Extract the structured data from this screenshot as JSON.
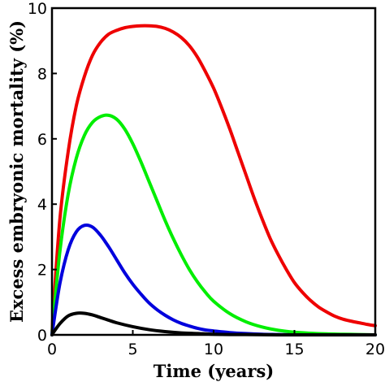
{
  "chart_data": {
    "type": "line",
    "title": "",
    "xlabel": "Time (years)",
    "ylabel": "Excess embryonic mortality (%)",
    "xlim": [
      0,
      20
    ],
    "ylim": [
      0,
      10
    ],
    "x_ticks": [
      0,
      5,
      10,
      15,
      20
    ],
    "y_ticks": [
      0,
      2,
      4,
      6,
      8,
      10
    ],
    "grid": false,
    "legend": "none",
    "series": [
      {
        "color": "#ee0000",
        "x": [
          0,
          0.1,
          0.5,
          1,
          1.5,
          2,
          2.5,
          3,
          3.5,
          4,
          4.5,
          5,
          5.5,
          6,
          6.5,
          7,
          7.5,
          8,
          8.5,
          9,
          9.5,
          10,
          10.5,
          11,
          11.5,
          12,
          12.5,
          13,
          13.5,
          14,
          14.5,
          15,
          15.5,
          16,
          16.5,
          17,
          17.5,
          18,
          18.5,
          19,
          19.5,
          20
        ],
        "values": [
          0,
          0.9,
          3.6,
          5.6,
          7.0,
          7.9,
          8.55,
          8.95,
          9.2,
          9.32,
          9.4,
          9.44,
          9.46,
          9.46,
          9.44,
          9.38,
          9.27,
          9.1,
          8.85,
          8.5,
          8.05,
          7.55,
          6.95,
          6.3,
          5.6,
          4.9,
          4.2,
          3.55,
          2.95,
          2.45,
          2.0,
          1.6,
          1.3,
          1.05,
          0.85,
          0.7,
          0.57,
          0.48,
          0.42,
          0.37,
          0.32,
          0.28
        ]
      },
      {
        "color": "#00ee00",
        "x": [
          0,
          0.1,
          0.5,
          1,
          1.5,
          2,
          2.5,
          3,
          3.5,
          4,
          4.5,
          5,
          5.5,
          6,
          6.5,
          7,
          7.5,
          8,
          8.5,
          9,
          9.5,
          10,
          11,
          12,
          13,
          14,
          15,
          16,
          17,
          18,
          19,
          20
        ],
        "values": [
          0,
          0.6,
          2.6,
          4.3,
          5.4,
          6.1,
          6.5,
          6.68,
          6.72,
          6.6,
          6.3,
          5.85,
          5.3,
          4.7,
          4.1,
          3.5,
          2.95,
          2.45,
          2.0,
          1.62,
          1.3,
          1.03,
          0.65,
          0.4,
          0.24,
          0.14,
          0.08,
          0.05,
          0.03,
          0.02,
          0.01,
          0.0
        ]
      },
      {
        "color": "#0000dd",
        "x": [
          0,
          0.1,
          0.5,
          1,
          1.5,
          2,
          2.5,
          3,
          3.5,
          4,
          4.5,
          5,
          5.5,
          6,
          6.5,
          7,
          7.5,
          8,
          8.5,
          9,
          9.5,
          10,
          11,
          12,
          13,
          14,
          15,
          16,
          18,
          20
        ],
        "values": [
          0,
          0.35,
          1.6,
          2.6,
          3.15,
          3.35,
          3.3,
          3.05,
          2.7,
          2.3,
          1.9,
          1.55,
          1.25,
          0.98,
          0.77,
          0.6,
          0.46,
          0.35,
          0.27,
          0.2,
          0.15,
          0.12,
          0.07,
          0.04,
          0.02,
          0.01,
          0.0,
          0.0,
          0.0,
          0.0
        ]
      },
      {
        "color": "#000000",
        "x": [
          0,
          0.1,
          0.5,
          1,
          1.5,
          2,
          2.5,
          3,
          3.5,
          4,
          5,
          6,
          7,
          8,
          9,
          10,
          11,
          12,
          14,
          16,
          18,
          20
        ],
        "values": [
          0,
          0.08,
          0.35,
          0.58,
          0.66,
          0.66,
          0.61,
          0.53,
          0.45,
          0.37,
          0.25,
          0.16,
          0.1,
          0.06,
          0.04,
          0.02,
          0.01,
          0.01,
          0.0,
          0.0,
          0.0,
          0.0
        ]
      }
    ]
  }
}
